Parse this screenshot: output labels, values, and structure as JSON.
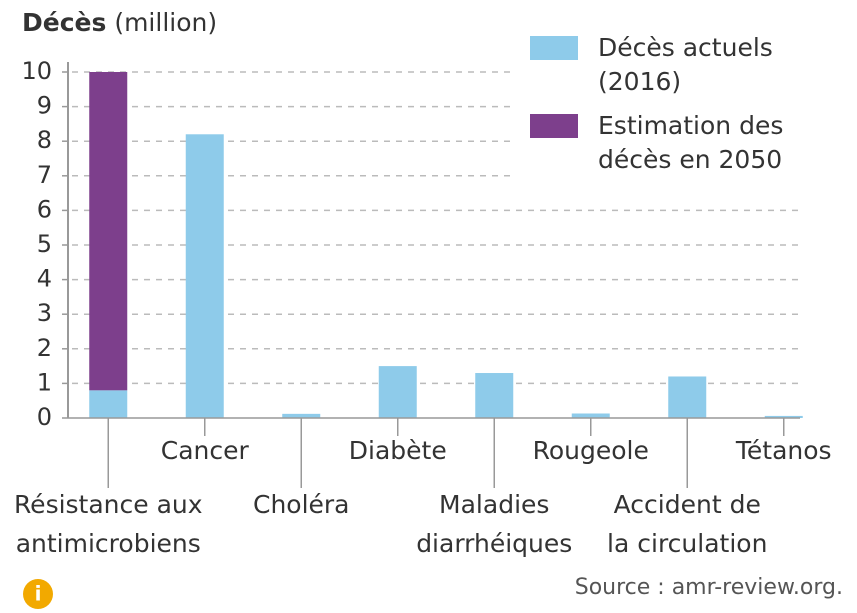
{
  "chart_data": {
    "type": "stacked_bar",
    "y_label": "Décès",
    "y_unit": "(million)",
    "categories": [
      [
        "Résistance aux",
        "antimicrobiens"
      ],
      [
        "Cancer"
      ],
      [
        "Choléra"
      ],
      [
        "Diabète"
      ],
      [
        "Maladies",
        "diarrhéiques"
      ],
      [
        "Rougeole"
      ],
      [
        "Accident de",
        "la circulation"
      ],
      [
        "Tétanos"
      ]
    ],
    "series": [
      {
        "name": "Décès actuels (2016)",
        "color": "#8ecbea",
        "values": [
          0.8,
          8.2,
          0.12,
          1.5,
          1.3,
          0.13,
          1.2,
          0.06
        ]
      },
      {
        "name": "Estimation des décès en 2050",
        "color": "#7d3f8c",
        "values": [
          9.2,
          null,
          null,
          null,
          null,
          null,
          null,
          null
        ]
      }
    ],
    "ylim": [
      0,
      10
    ],
    "yticks": [
      0,
      1,
      2,
      3,
      4,
      5,
      6,
      7,
      8,
      9,
      10
    ],
    "grid": true,
    "legend": "top-right",
    "source": "Source : amr-review.org."
  }
}
